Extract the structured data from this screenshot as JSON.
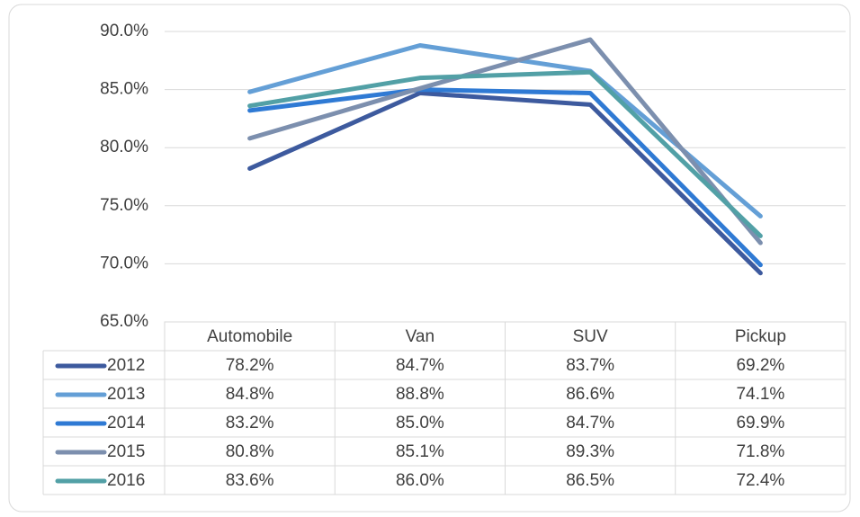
{
  "chart_data": {
    "type": "line",
    "categories": [
      "Automobile",
      "Van",
      "SUV",
      "Pickup"
    ],
    "series": [
      {
        "name": "2012",
        "color": "#3d5a9e",
        "values": [
          78.2,
          84.7,
          83.7,
          69.2
        ],
        "value_labels": [
          "78.2%",
          "84.7%",
          "83.7%",
          "69.2%"
        ]
      },
      {
        "name": "2013",
        "color": "#649fd6",
        "values": [
          84.8,
          88.8,
          86.6,
          74.1
        ],
        "value_labels": [
          "84.8%",
          "88.8%",
          "86.6%",
          "74.1%"
        ]
      },
      {
        "name": "2014",
        "color": "#2f7ad4",
        "values": [
          83.2,
          85.0,
          84.7,
          69.9
        ],
        "value_labels": [
          "83.2%",
          "85.0%",
          "84.7%",
          "69.9%"
        ]
      },
      {
        "name": "2015",
        "color": "#7c8fae",
        "values": [
          80.8,
          85.1,
          89.3,
          71.8
        ],
        "value_labels": [
          "80.8%",
          "85.1%",
          "89.3%",
          "71.8%"
        ]
      },
      {
        "name": "2016",
        "color": "#52a0a6",
        "values": [
          83.6,
          86.0,
          86.5,
          72.4
        ],
        "value_labels": [
          "83.6%",
          "86.0%",
          "86.5%",
          "72.4%"
        ]
      }
    ],
    "ylim": [
      65,
      90
    ],
    "yticks": [
      {
        "value": 65,
        "label": "65.0%"
      },
      {
        "value": 70,
        "label": "70.0%"
      },
      {
        "value": 75,
        "label": "75.0%"
      },
      {
        "value": 80,
        "label": "80.0%"
      },
      {
        "value": 85,
        "label": "85.0%"
      },
      {
        "value": 90,
        "label": "90.0%"
      }
    ],
    "grid": true
  }
}
